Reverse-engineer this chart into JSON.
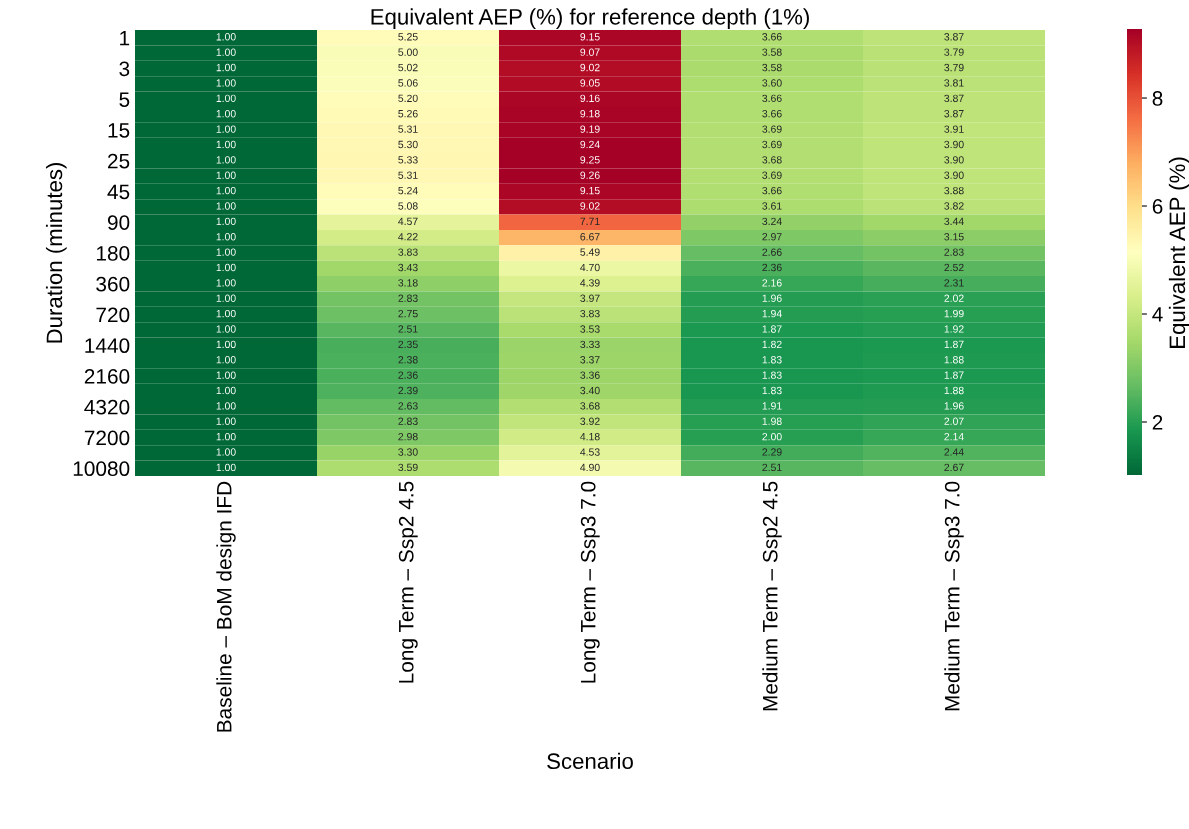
{
  "chart_data": {
    "type": "heatmap",
    "title": "Equivalent AEP (%) for reference depth (1%)",
    "xlabel": "Scenario",
    "ylabel": "Duration (minutes)",
    "clabel": "Equivalent AEP (%)",
    "categories": [
      "Baseline – BoM design IFD",
      "Long Term – Ssp2 4.5",
      "Long Term – Ssp3 7.0",
      "Medium Term – Ssp2 4.5",
      "Medium Term – Ssp3 7.0"
    ],
    "y_categories": [
      "1",
      null,
      "3",
      null,
      "5",
      null,
      "15",
      null,
      "25",
      null,
      "45",
      null,
      "90",
      null,
      "180",
      null,
      "360",
      null,
      "720",
      null,
      "1440",
      null,
      "2160",
      null,
      "4320",
      null,
      "7200",
      null,
      "10080"
    ],
    "cells": [
      [
        1.0,
        5.25,
        9.15,
        3.66,
        3.87
      ],
      [
        1.0,
        5.0,
        9.07,
        3.58,
        3.79
      ],
      [
        1.0,
        5.02,
        9.02,
        3.58,
        3.79
      ],
      [
        1.0,
        5.06,
        9.05,
        3.6,
        3.81
      ],
      [
        1.0,
        5.2,
        9.16,
        3.66,
        3.87
      ],
      [
        1.0,
        5.26,
        9.18,
        3.66,
        3.87
      ],
      [
        1.0,
        5.31,
        9.19,
        3.69,
        3.91
      ],
      [
        1.0,
        5.3,
        9.24,
        3.69,
        3.9
      ],
      [
        1.0,
        5.33,
        9.25,
        3.68,
        3.9
      ],
      [
        1.0,
        5.31,
        9.26,
        3.69,
        3.9
      ],
      [
        1.0,
        5.24,
        9.15,
        3.66,
        3.88
      ],
      [
        1.0,
        5.08,
        9.02,
        3.61,
        3.82
      ],
      [
        1.0,
        4.57,
        7.71,
        3.24,
        3.44
      ],
      [
        1.0,
        4.22,
        6.67,
        2.97,
        3.15
      ],
      [
        1.0,
        3.83,
        5.49,
        2.66,
        2.83
      ],
      [
        1.0,
        3.43,
        4.7,
        2.36,
        2.52
      ],
      [
        1.0,
        3.18,
        4.39,
        2.16,
        2.31
      ],
      [
        1.0,
        2.83,
        3.97,
        1.96,
        2.02
      ],
      [
        1.0,
        2.75,
        3.83,
        1.94,
        1.99
      ],
      [
        1.0,
        2.51,
        3.53,
        1.87,
        1.92
      ],
      [
        1.0,
        2.35,
        3.33,
        1.82,
        1.87
      ],
      [
        1.0,
        2.38,
        3.37,
        1.83,
        1.88
      ],
      [
        1.0,
        2.36,
        3.36,
        1.83,
        1.87
      ],
      [
        1.0,
        2.39,
        3.4,
        1.83,
        1.88
      ],
      [
        1.0,
        2.63,
        3.68,
        1.91,
        1.96
      ],
      [
        1.0,
        2.83,
        3.92,
        1.98,
        2.07
      ],
      [
        1.0,
        2.98,
        4.18,
        2.0,
        2.14
      ],
      [
        1.0,
        3.3,
        4.53,
        2.29,
        2.44
      ],
      [
        1.0,
        3.59,
        4.9,
        2.51,
        2.67
      ]
    ],
    "cell_labels": [
      [
        "1.00",
        "5.25",
        "9.15",
        "3.66",
        "3.87"
      ],
      [
        "1.00",
        "5.00",
        "9.07",
        "3.58",
        "3.79"
      ],
      [
        "1.00",
        "5.02",
        "9.02",
        "3.58",
        "3.79"
      ],
      [
        "1.00",
        "5.06",
        "9.05",
        "3.60",
        "3.81"
      ],
      [
        "1.00",
        "5.20",
        "9.16",
        "3.66",
        "3.87"
      ],
      [
        "1.00",
        "5.26",
        "9.18",
        "3.66",
        "3.87"
      ],
      [
        "1.00",
        "5.31",
        "9.19",
        "3.69",
        "3.91"
      ],
      [
        "1.00",
        "5.30",
        "9.24",
        "3.69",
        "3.90"
      ],
      [
        "1.00",
        "5.33",
        "9.25",
        "3.68",
        "3.90"
      ],
      [
        "1.00",
        "5.31",
        "9.26",
        "3.69",
        "3.90"
      ],
      [
        "1.00",
        "5.24",
        "9.15",
        "3.66",
        "3.88"
      ],
      [
        "1.00",
        "5.08",
        "9.02",
        "3.61",
        "3.82"
      ],
      [
        "1.00",
        "4.57",
        "7.71",
        "3.24",
        "3.44"
      ],
      [
        "1.00",
        "4.22",
        "6.67",
        "2.97",
        "3.15"
      ],
      [
        "1.00",
        "3.83",
        "5.49",
        "2.66",
        "2.83"
      ],
      [
        "1.00",
        "3.43",
        "4.70",
        "2.36",
        "2.52"
      ],
      [
        "1.00",
        "3.18",
        "4.39",
        "2.16",
        "2.31"
      ],
      [
        "1.00",
        "2.83",
        "3.97",
        "1.96",
        "2.02"
      ],
      [
        "1.00",
        "2.75",
        "3.83",
        "1.94",
        "1.99"
      ],
      [
        "1.00",
        "2.51",
        "3.53",
        "1.87",
        "1.92"
      ],
      [
        "1.00",
        "2.35",
        "3.33",
        "1.82",
        "1.87"
      ],
      [
        "1.00",
        "2.38",
        "3.37",
        "1.83",
        "1.88"
      ],
      [
        "1.00",
        "2.36",
        "3.36",
        "1.83",
        "1.87"
      ],
      [
        "1.00",
        "2.39",
        "3.40",
        "1.83",
        "1.88"
      ],
      [
        "1.00",
        "2.63",
        "3.68",
        "1.91",
        "1.96"
      ],
      [
        "1.00",
        "2.83",
        "3.92",
        "1.98",
        "2.07"
      ],
      [
        "1.00",
        "2.98",
        "4.18",
        "2.00",
        "2.14"
      ],
      [
        "1.00",
        "3.30",
        "4.53",
        "2.29",
        "2.44"
      ],
      [
        "1.00",
        "3.59",
        "4.90",
        "2.51",
        "2.67"
      ]
    ],
    "clim": [
      1.0,
      9.26
    ],
    "cticks": [
      2,
      4,
      6,
      8
    ]
  }
}
